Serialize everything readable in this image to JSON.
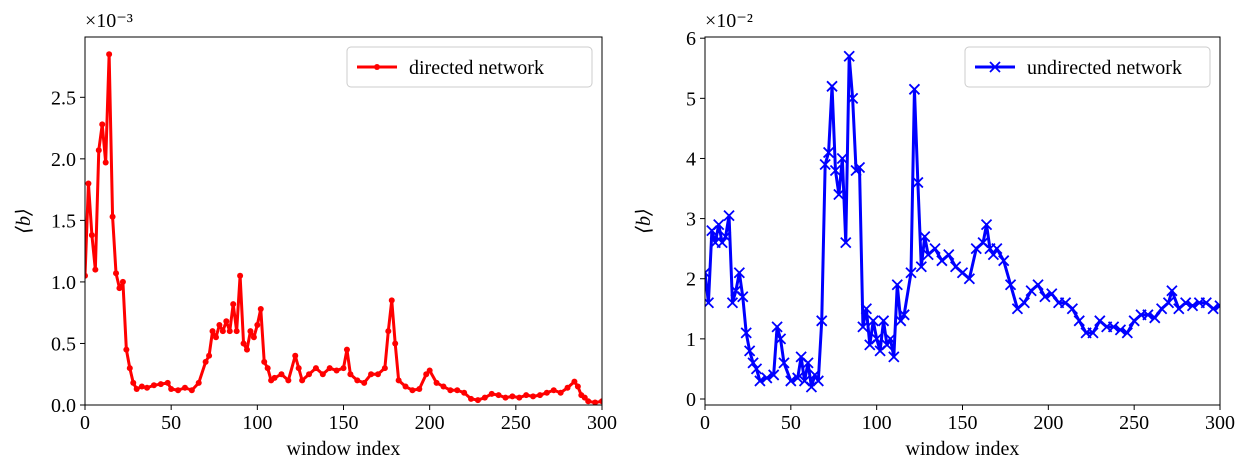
{
  "chart_data": [
    {
      "type": "line",
      "xlabel": "window index",
      "ylabel": "⟨b⟩",
      "y_offset_label": "×10⁻³",
      "xlim": [
        0,
        300
      ],
      "ylim": [
        0,
        2.99
      ],
      "xticks": [
        0,
        50,
        100,
        150,
        200,
        250,
        300
      ],
      "yticks": [
        {
          "value": 0,
          "label": "0.0"
        },
        0.5,
        {
          "value": 1,
          "label": "1.0"
        },
        1.5,
        {
          "value": 2,
          "label": "2.0"
        },
        2.5
      ],
      "legend": "upper right",
      "series": [
        {
          "name": "directed network",
          "color": "#ff0000",
          "marker": "dot",
          "x": [
            0,
            2,
            4,
            6,
            8,
            10,
            12,
            14,
            16,
            18,
            20,
            22,
            24,
            26,
            28,
            30,
            33,
            36,
            40,
            44,
            48,
            50,
            54,
            58,
            62,
            66,
            70,
            72,
            74,
            76,
            78,
            80,
            82,
            84,
            86,
            88,
            90,
            92,
            94,
            96,
            98,
            100,
            102,
            104,
            106,
            108,
            110,
            114,
            118,
            122,
            124,
            126,
            130,
            134,
            138,
            142,
            146,
            150,
            152,
            154,
            158,
            162,
            166,
            170,
            174,
            176,
            178,
            180,
            182,
            186,
            190,
            194,
            198,
            200,
            204,
            208,
            212,
            216,
            220,
            224,
            228,
            232,
            236,
            240,
            244,
            248,
            252,
            256,
            260,
            264,
            268,
            272,
            276,
            280,
            284,
            286,
            288,
            290,
            292,
            296,
            300
          ],
          "values": [
            1.05,
            1.8,
            1.38,
            1.1,
            2.07,
            2.28,
            1.97,
            2.85,
            1.53,
            1.07,
            0.95,
            1.0,
            0.45,
            0.3,
            0.18,
            0.13,
            0.15,
            0.14,
            0.16,
            0.17,
            0.18,
            0.13,
            0.12,
            0.14,
            0.12,
            0.18,
            0.35,
            0.4,
            0.6,
            0.55,
            0.65,
            0.6,
            0.68,
            0.6,
            0.82,
            0.6,
            1.05,
            0.5,
            0.45,
            0.6,
            0.55,
            0.65,
            0.78,
            0.35,
            0.3,
            0.2,
            0.22,
            0.25,
            0.2,
            0.4,
            0.3,
            0.2,
            0.25,
            0.3,
            0.25,
            0.3,
            0.28,
            0.3,
            0.45,
            0.25,
            0.2,
            0.18,
            0.25,
            0.25,
            0.3,
            0.6,
            0.85,
            0.5,
            0.2,
            0.15,
            0.12,
            0.13,
            0.25,
            0.28,
            0.18,
            0.15,
            0.12,
            0.12,
            0.1,
            0.05,
            0.04,
            0.06,
            0.09,
            0.08,
            0.06,
            0.07,
            0.06,
            0.08,
            0.07,
            0.08,
            0.1,
            0.12,
            0.1,
            0.14,
            0.19,
            0.15,
            0.08,
            0.06,
            0.03,
            0.02,
            0.03
          ]
        }
      ]
    },
    {
      "type": "line",
      "xlabel": "window index",
      "ylabel": "⟨b⟩",
      "y_offset_label": "×10⁻²",
      "xlim": [
        0,
        300
      ],
      "ylim": [
        -0.1,
        6.02
      ],
      "xticks": [
        0,
        50,
        100,
        150,
        200,
        250,
        300
      ],
      "yticks": [
        0,
        1,
        2,
        3,
        4,
        5,
        6
      ],
      "legend": "upper right",
      "series": [
        {
          "name": "undirected network",
          "color": "#0000ff",
          "marker": "x",
          "x": [
            0,
            2,
            4,
            6,
            8,
            10,
            12,
            14,
            16,
            18,
            20,
            22,
            24,
            26,
            28,
            30,
            32,
            36,
            40,
            42,
            44,
            46,
            50,
            54,
            56,
            58,
            60,
            62,
            64,
            66,
            68,
            70,
            72,
            74,
            76,
            78,
            80,
            82,
            84,
            86,
            88,
            90,
            92,
            94,
            96,
            98,
            100,
            102,
            104,
            106,
            108,
            110,
            112,
            114,
            116,
            120,
            122,
            124,
            126,
            128,
            130,
            134,
            138,
            142,
            146,
            150,
            154,
            158,
            162,
            164,
            166,
            168,
            170,
            174,
            178,
            182,
            186,
            190,
            194,
            198,
            202,
            206,
            210,
            214,
            218,
            222,
            226,
            230,
            234,
            238,
            242,
            246,
            250,
            254,
            258,
            262,
            266,
            270,
            272,
            276,
            280,
            284,
            288,
            292,
            296,
            300
          ],
          "values": [
            2.1,
            1.6,
            2.8,
            2.6,
            2.9,
            2.6,
            2.7,
            3.05,
            1.6,
            1.8,
            2.1,
            1.7,
            1.1,
            0.8,
            0.6,
            0.5,
            0.3,
            0.35,
            0.4,
            1.2,
            1.0,
            0.6,
            0.3,
            0.35,
            0.7,
            0.3,
            0.6,
            0.2,
            0.4,
            0.3,
            1.3,
            3.9,
            4.1,
            5.2,
            3.8,
            3.4,
            4.0,
            2.6,
            5.7,
            5.0,
            3.8,
            3.85,
            1.2,
            1.5,
            0.9,
            1.3,
            1.0,
            0.8,
            1.3,
            0.9,
            1.0,
            0.7,
            1.9,
            1.3,
            1.4,
            2.1,
            5.15,
            3.6,
            2.2,
            2.7,
            2.4,
            2.5,
            2.3,
            2.4,
            2.2,
            2.1,
            2.0,
            2.5,
            2.6,
            2.9,
            2.5,
            2.4,
            2.5,
            2.3,
            1.9,
            1.5,
            1.6,
            1.8,
            1.9,
            1.7,
            1.75,
            1.6,
            1.6,
            1.5,
            1.3,
            1.1,
            1.1,
            1.3,
            1.2,
            1.2,
            1.15,
            1.1,
            1.3,
            1.4,
            1.4,
            1.35,
            1.5,
            1.6,
            1.8,
            1.5,
            1.6,
            1.55,
            1.6,
            1.6,
            1.5,
            1.55
          ]
        }
      ]
    }
  ]
}
